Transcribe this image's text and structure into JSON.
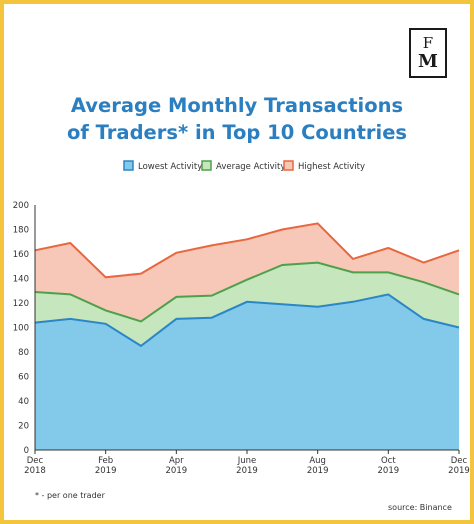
{
  "logo": {
    "line1": "F",
    "line2": "M"
  },
  "colors": {
    "lowest": "#82c9ea",
    "lowest_stroke": "#2b86c5",
    "average": "#c6e6bd",
    "average_stroke": "#4ea04a",
    "highest": "#f7c7b8",
    "highest_stroke": "#e9673f",
    "title": "#2b7fc0",
    "border": "#f2c53d"
  },
  "chart_data": {
    "type": "area",
    "title_line1": "Average Monthly Transactions",
    "title_line2": "of Traders* in Top 10 Countries",
    "x": [
      "Dec 2018",
      "Jan 2019",
      "Feb 2019",
      "Mar 2019",
      "Apr 2019",
      "May 2019",
      "Jun 2019",
      "Jul 2019",
      "Aug 2019",
      "Sep 2019",
      "Oct 2019",
      "Nov 2019",
      "Dec 2019"
    ],
    "x_tick_labels": [
      {
        "index": 0,
        "line1": "Dec",
        "line2": "2018"
      },
      {
        "index": 2,
        "line1": "Feb",
        "line2": "2019"
      },
      {
        "index": 4,
        "line1": "Apr",
        "line2": "2019"
      },
      {
        "index": 6,
        "line1": "June",
        "line2": "2019"
      },
      {
        "index": 8,
        "line1": "Aug",
        "line2": "2019"
      },
      {
        "index": 10,
        "line1": "Oct",
        "line2": "2019"
      },
      {
        "index": 12,
        "line1": "Dec",
        "line2": "2019"
      }
    ],
    "series": [
      {
        "name": "Highest Activity",
        "key": "highest",
        "values": [
          163,
          169,
          141,
          144,
          161,
          167,
          172,
          180,
          185,
          156,
          165,
          153,
          163
        ]
      },
      {
        "name": "Average Activity",
        "key": "average",
        "values": [
          129,
          127,
          114,
          105,
          125,
          126,
          139,
          151,
          153,
          145,
          145,
          137,
          127
        ]
      },
      {
        "name": "Lowest Activity",
        "key": "lowest",
        "values": [
          104,
          107,
          103,
          85,
          107,
          108,
          121,
          119,
          117,
          121,
          127,
          107,
          100
        ]
      }
    ],
    "legend_order": [
      "Lowest Activity",
      "Average Activity",
      "Highest Activity"
    ],
    "ylim": [
      0,
      200
    ],
    "yticks": [
      0,
      20,
      40,
      60,
      80,
      100,
      120,
      140,
      160,
      180,
      200
    ],
    "grid": false,
    "legend": "top-center",
    "footnote": "* - per one trader",
    "source": "source: Binance"
  }
}
